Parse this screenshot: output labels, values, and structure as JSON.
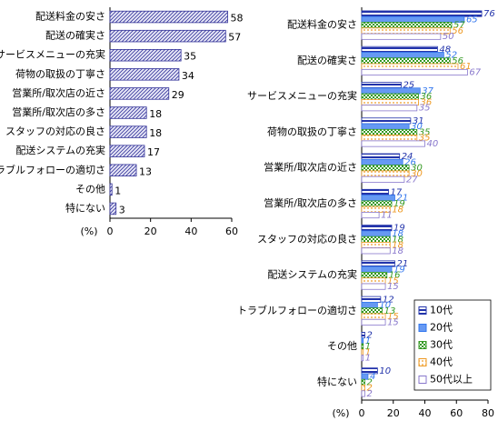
{
  "chart_data": [
    {
      "type": "barh",
      "categories": [
        "配送料金の安さ",
        "配送の確実さ",
        "サービスメニューの充実",
        "荷物の取扱の丁寧さ",
        "営業所/取次店の近さ",
        "営業所/取次店の多さ",
        "スタッフの対応の良さ",
        "配送システムの充実",
        "トラブルフォローの適切さ",
        "その他",
        "特にない"
      ],
      "values": [
        58,
        57,
        35,
        34,
        29,
        18,
        18,
        17,
        13,
        1,
        3
      ],
      "color": "#333399",
      "xlim": [
        0,
        60
      ],
      "xticks": [
        0,
        20,
        40,
        60
      ],
      "xlabel": "(%)"
    },
    {
      "type": "grouped-barh",
      "categories": [
        "配送料金の安さ",
        "配送の確実さ",
        "サービスメニューの充実",
        "荷物の取扱の丁寧さ",
        "営業所/取次店の近さ",
        "営業所/取次店の多さ",
        "スタッフの対応の良さ",
        "配送システムの充実",
        "トラブルフォローの適切さ",
        "その他",
        "特にない"
      ],
      "series": [
        {
          "name": "10代",
          "color": "#2233aa",
          "values": [
            76,
            48,
            25,
            31,
            24,
            17,
            19,
            21,
            12,
            2,
            10
          ]
        },
        {
          "name": "20代",
          "color": "#3377ee",
          "values": [
            65,
            52,
            37,
            30,
            26,
            21,
            18,
            19,
            10,
            1,
            4
          ]
        },
        {
          "name": "30代",
          "color": "#339922",
          "values": [
            57,
            56,
            36,
            35,
            30,
            19,
            18,
            16,
            13,
            1,
            2
          ]
        },
        {
          "name": "40代",
          "color": "#ee9922",
          "values": [
            56,
            61,
            36,
            35,
            30,
            18,
            18,
            15,
            15,
            1,
            2
          ]
        },
        {
          "name": "50代以上",
          "color": "#8877cc",
          "values": [
            50,
            67,
            35,
            40,
            27,
            11,
            18,
            15,
            15,
            1,
            2
          ]
        }
      ],
      "xlim": [
        0,
        80
      ],
      "xticks": [
        0,
        20,
        40,
        60,
        80
      ],
      "xlabel": "(%)",
      "legend": "lower-right"
    }
  ]
}
